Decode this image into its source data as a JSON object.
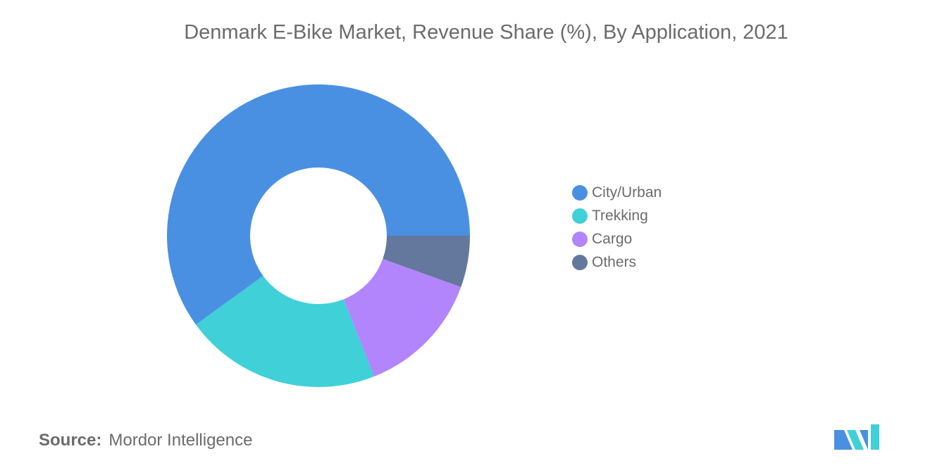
{
  "chart_data": {
    "type": "pie",
    "title": "Denmark E-Bike Market, Revenue Share (%), By Application, 2021",
    "categories": [
      "City/Urban",
      "Trekking",
      "Cargo",
      "Others"
    ],
    "values": [
      60,
      21,
      13.5,
      5.5
    ],
    "colors": [
      "#4a90e2",
      "#40d0d8",
      "#b285fc",
      "#64779c"
    ],
    "donut": true,
    "legend_position": "right"
  },
  "source": {
    "label": "Source:",
    "value": "Mordor Intelligence"
  },
  "logo": {
    "colors": [
      "#4a90e2",
      "#40d0d8"
    ]
  }
}
